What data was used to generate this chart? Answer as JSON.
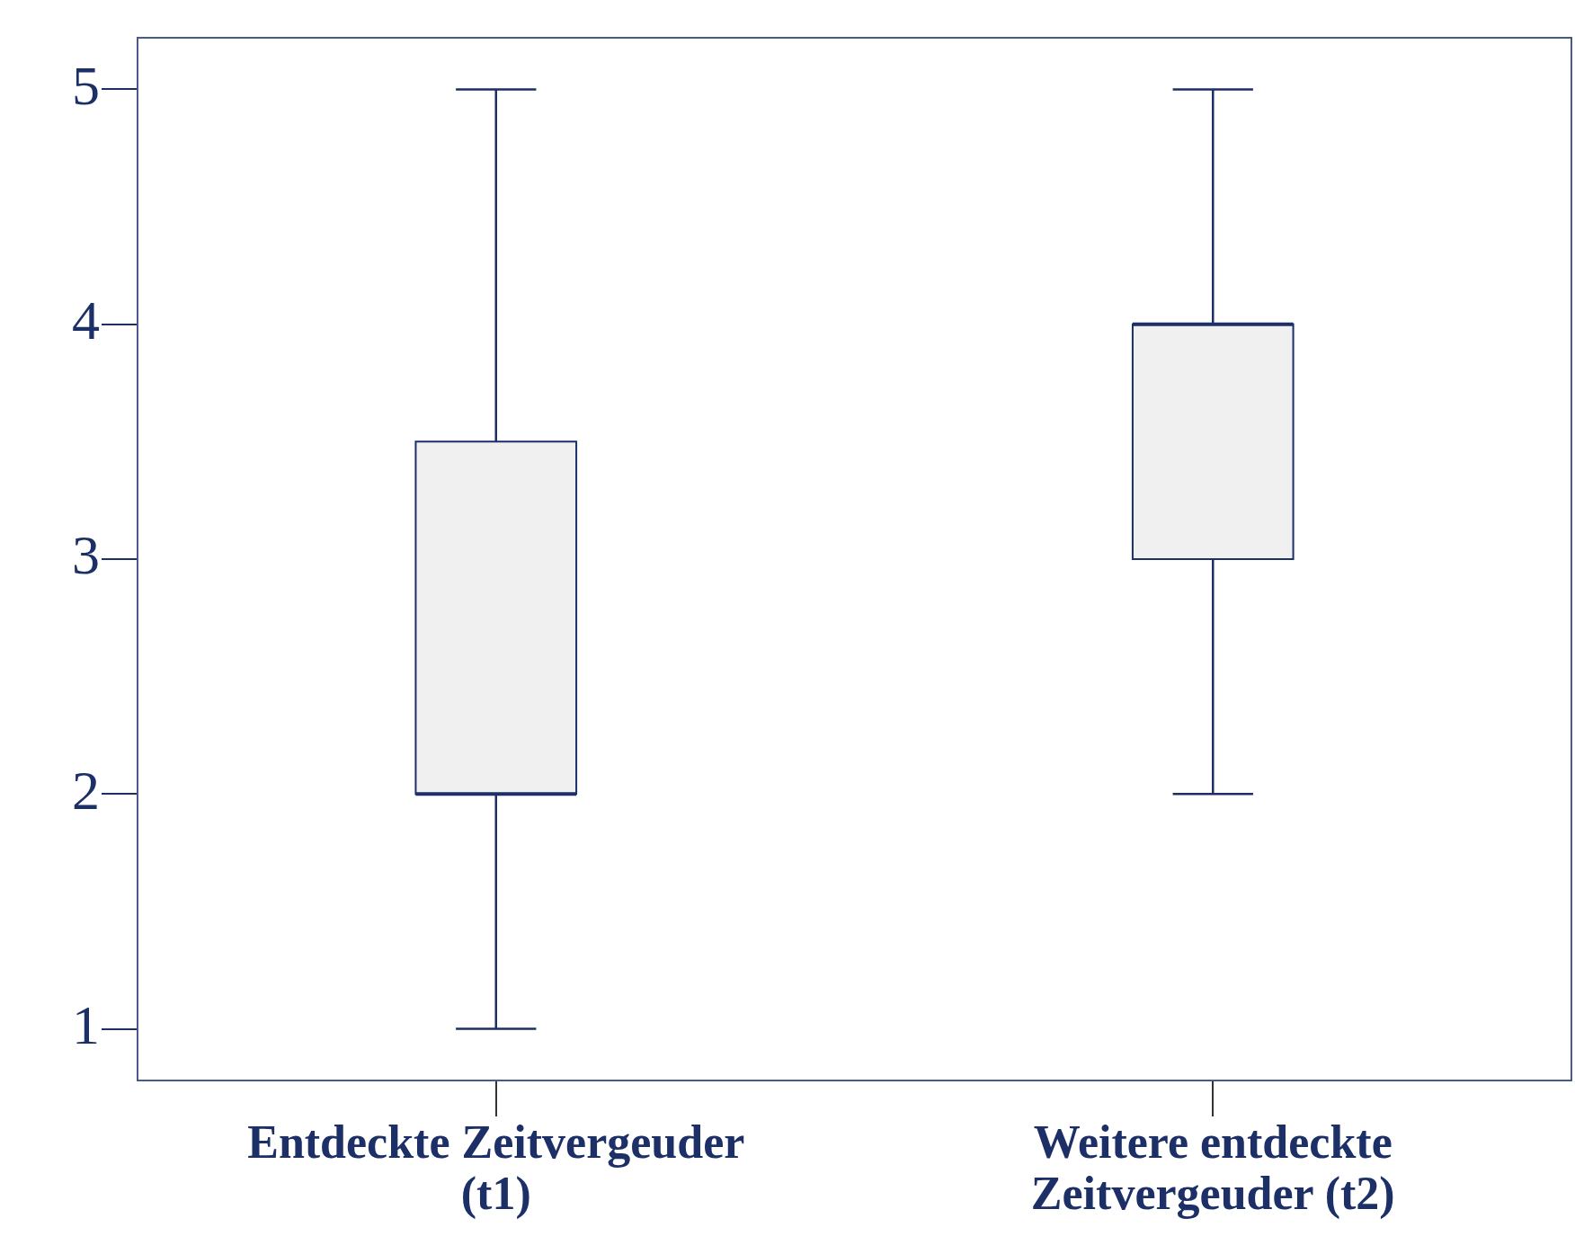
{
  "chart_data": {
    "type": "box",
    "categories": [
      "Entdeckte Zeitvergeuder (t1)",
      "Weitere entdeckte Zeitvergeuder (t2)"
    ],
    "boxes": [
      {
        "low": 1,
        "q1": 2,
        "median": 2,
        "q3": 3.5,
        "high": 5
      },
      {
        "low": 2,
        "q1": 3,
        "median": 4,
        "q3": 4,
        "high": 5
      }
    ],
    "color": "#f0f0f0",
    "ylim": [
      0.78,
      5.22
    ],
    "yticks": [
      1,
      2,
      3,
      4,
      5
    ]
  }
}
